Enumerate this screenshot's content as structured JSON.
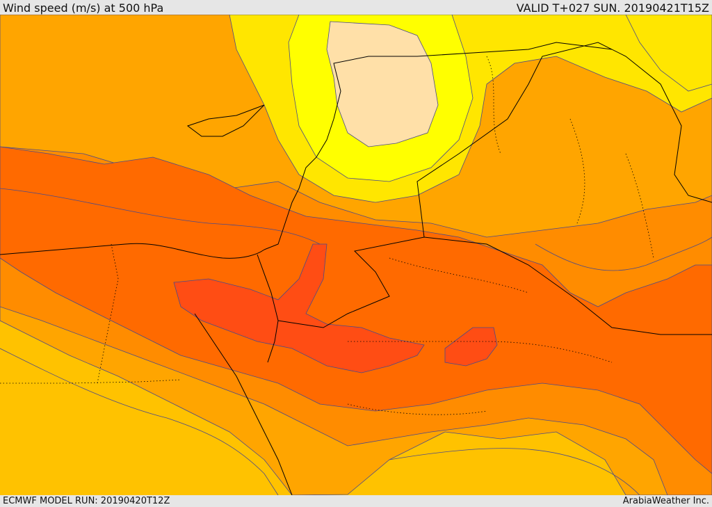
{
  "header": {
    "title": "Wind speed (m/s) at 500 hPa",
    "valid": "VALID T+027 SUN. 20190421T15Z"
  },
  "footer": {
    "model_run": "ECMWF MODEL RUN: 20190420T12Z",
    "credit": "ArabiaWeather Inc."
  },
  "palette": {
    "band_lightest": "#ffe0a8",
    "band_yellow": "#ffff00",
    "band_lemon": "#ffe600",
    "band_gold": "#ffc200",
    "band_amber": "#ffa500",
    "band_orange": "#ff8c00",
    "band_dark_orange": "#ff6a00",
    "band_red_orange": "#ff4d14",
    "contour": "#4a4a8a",
    "border": "#000000"
  }
}
